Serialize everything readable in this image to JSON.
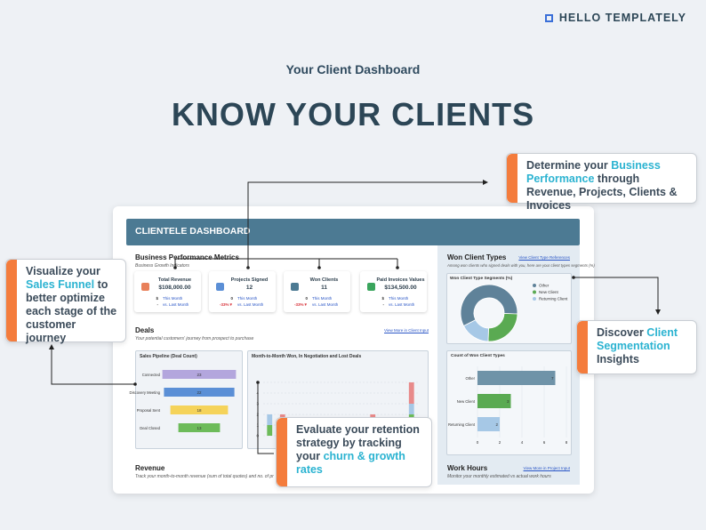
{
  "brand": "HELLO TEMPLATELY",
  "header": {
    "subtitle": "Your Client Dashboard",
    "title": "KNOW YOUR CLIENTS"
  },
  "callouts": [
    {
      "segments": [
        {
          "text": "Determine your"
        },
        {
          "text": "Business Performance",
          "highlight": true
        },
        {
          "text": "through Revenue, Projects, Clients & Invoices"
        }
      ]
    },
    {
      "segments": [
        {
          "text": "Visualize your"
        },
        {
          "text": "Sales Funnel",
          "highlight": true
        },
        {
          "text": "to better optimize each stage of the customer journey"
        }
      ]
    },
    {
      "segments": [
        {
          "text": "Discover"
        },
        {
          "text": "Client Segmentation",
          "highlight": true
        },
        {
          "text": "Insights"
        }
      ]
    },
    {
      "segments": [
        {
          "text": "Evaluate your retention strategy by tracking your"
        },
        {
          "text": "churn & growth rates",
          "highlight": true
        }
      ]
    }
  ],
  "dashboard": {
    "title": "CLIENTELE DASHBOARD",
    "metrics": {
      "title": "Business Performance Metrics",
      "subtitle": "Business Growth Indicators",
      "cards": [
        {
          "label": "Total Revenue",
          "value": "$108,000.00",
          "icon_color": "#e8805a",
          "rows": [
            {
              "change": "$",
              "period": "This Month",
              "color": "#333333"
            },
            {
              "change": "-",
              "period": "vs. Last Month",
              "color": "#333333"
            }
          ]
        },
        {
          "label": "Projects Signed",
          "value": "12",
          "icon_color": "#5b8fd6",
          "rows": [
            {
              "change": "0",
              "period": "This Month",
              "color": "#333333"
            },
            {
              "change": "-33%▼",
              "period": "vs. Last Month",
              "color": "#d9363e"
            }
          ]
        },
        {
          "label": "Won Clients",
          "value": "11",
          "icon_color": "#4c7a93",
          "rows": [
            {
              "change": "0",
              "period": "This Month",
              "color": "#333333"
            },
            {
              "change": "-33%▼",
              "period": "vs. Last Month",
              "color": "#d9363e"
            }
          ]
        },
        {
          "label": "Paid Invoices Values",
          "value": "$134,500.00",
          "icon_color": "#3aa55d",
          "rows": [
            {
              "change": "$",
              "period": "This Month",
              "color": "#333333"
            },
            {
              "change": "-",
              "period": "vs. Last Month",
              "color": "#333333"
            }
          ]
        }
      ]
    },
    "deals": {
      "title": "Deals",
      "subtitle": "Your potential customers' journey from prospect to purchase",
      "link": "View More in Client Input",
      "pipeline": {
        "title": "Sales Pipeline (Deal Count)",
        "categories": [
          "Connected",
          "Discovery Meeting",
          "Proposal Sent",
          "Deal Closed"
        ],
        "values": [
          23,
          22,
          18,
          13
        ],
        "colors": [
          "#b3a6dd",
          "#5b8fd6",
          "#f5d35a",
          "#6dbb5a"
        ],
        "xlim": [
          0,
          25
        ]
      },
      "monthly": {
        "title": "Month-to-Month Won, In Negotiation and Lost Deals",
        "categories": [
          null,
          null,
          null,
          null,
          null,
          null,
          null,
          null,
          null,
          null,
          null,
          null
        ],
        "series": [
          {
            "color": "#6dbb5a",
            "values": [
              1,
              0,
              1,
              1,
              0,
              1,
              1,
              1,
              1,
              0,
              0,
              2
            ]
          },
          {
            "color": "#a6c8e6",
            "values": [
              1,
              1,
              0,
              0,
              1,
              0,
              0,
              0,
              0,
              1,
              0,
              1
            ]
          },
          {
            "color": "#e88a8a",
            "values": [
              0,
              1,
              0,
              0,
              0,
              0,
              0,
              0,
              1,
              0,
              0,
              2
            ]
          }
        ],
        "ylim": [
          0,
          6
        ],
        "yticks": [
          0,
          1,
          2,
          3,
          4,
          5
        ]
      }
    },
    "revenue": {
      "title": "Revenue",
      "subtitle": "Track your month-to-month revenue (sum of total quotes) and no. of projects signed (counted)"
    },
    "won_client_types": {
      "title": "Won Client Types",
      "link": "View Client Type References",
      "subtitle": "Among won clients who signed deals with you, here are your client types segments (%)",
      "donut": {
        "title": "Won Client Type Segments (%)",
        "categories": [
          "Other",
          "New Client",
          "Returning Client"
        ],
        "values": [
          58,
          25,
          17
        ],
        "colors": [
          "#5f8299",
          "#5aaa52",
          "#a6c8e6"
        ]
      },
      "bars": {
        "title": "Count of Won Client Types",
        "categories": [
          "Other",
          "New Client",
          "Returning Client"
        ],
        "values": [
          7,
          3,
          2
        ],
        "colors": [
          "#6f93a8",
          "#5aaa52",
          "#a6c8e6"
        ],
        "xlim": [
          0,
          8
        ],
        "xticks": [
          0,
          2,
          4,
          6,
          8
        ]
      }
    },
    "work_hours": {
      "title": "Work Hours",
      "link": "View More in Project Input",
      "subtitle": "Monitor your monthly estimated vs actual work hours"
    }
  }
}
